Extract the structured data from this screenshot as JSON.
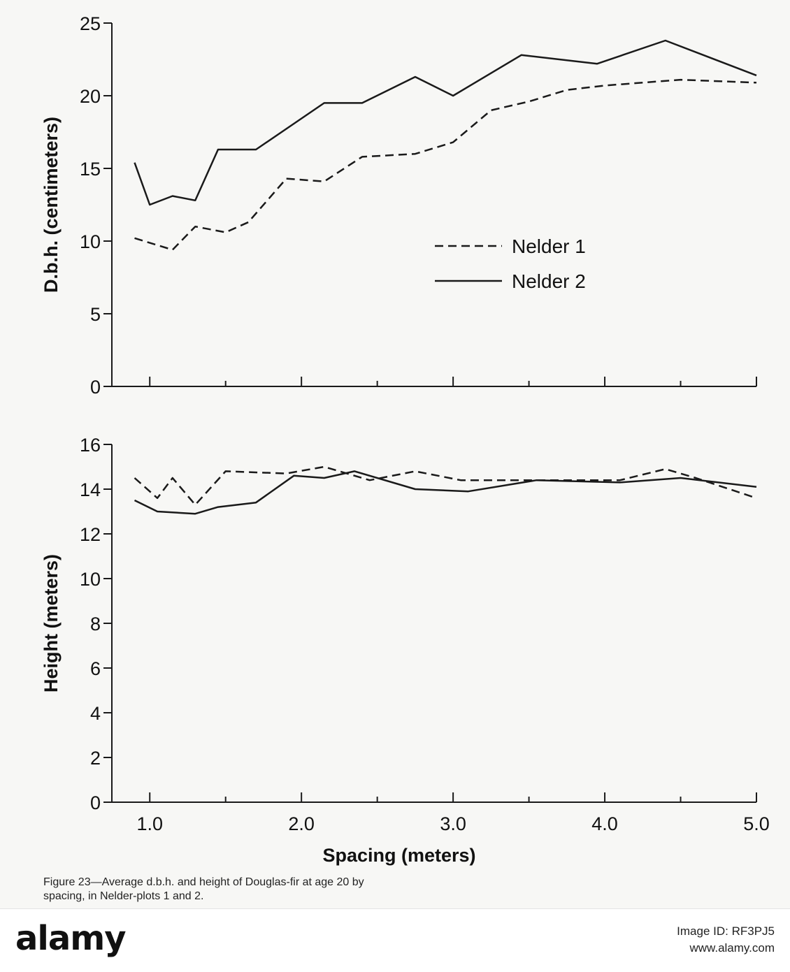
{
  "chart_data": [
    {
      "type": "line",
      "title": "",
      "xlabel": "",
      "ylabel": "D.b.h. (centimeters)",
      "ylim": [
        0,
        25
      ],
      "yticks": [
        "0",
        "5",
        "10",
        "15",
        "20",
        "25"
      ],
      "legend_position": "center-right",
      "series": [
        {
          "name": "Nelder 1",
          "style": "dashed",
          "x": [
            0.9,
            1.15,
            1.3,
            1.5,
            1.65,
            1.9,
            2.15,
            2.4,
            2.75,
            3.0,
            3.25,
            3.5,
            3.75,
            4.0,
            4.5,
            5.0
          ],
          "values": [
            10.2,
            9.4,
            11.0,
            10.6,
            11.3,
            14.3,
            14.1,
            15.8,
            16.0,
            16.8,
            19.0,
            19.6,
            20.4,
            20.7,
            21.1,
            20.9
          ]
        },
        {
          "name": "Nelder 2",
          "style": "solid",
          "x": [
            0.9,
            1.0,
            1.15,
            1.3,
            1.45,
            1.7,
            2.15,
            2.4,
            2.75,
            3.0,
            3.45,
            3.95,
            4.4,
            5.0
          ],
          "values": [
            15.4,
            12.5,
            13.1,
            12.8,
            16.3,
            16.3,
            19.5,
            19.5,
            21.3,
            20.0,
            22.8,
            22.2,
            23.8,
            21.4
          ]
        }
      ]
    },
    {
      "type": "line",
      "title": "",
      "xlabel": "Spacing (meters)",
      "ylabel": "Height (meters)",
      "ylim": [
        0,
        16
      ],
      "xlim": [
        0.75,
        5.0
      ],
      "xticks": [
        "1.0",
        "2.0",
        "3.0",
        "4.0",
        "5.0"
      ],
      "yticks": [
        "0",
        "2",
        "4",
        "6",
        "8",
        "10",
        "12",
        "14",
        "16"
      ],
      "series": [
        {
          "name": "Nelder 1",
          "style": "dashed",
          "x": [
            0.9,
            1.05,
            1.15,
            1.3,
            1.5,
            1.9,
            2.15,
            2.45,
            2.75,
            3.05,
            3.5,
            4.1,
            4.4,
            4.6,
            5.0
          ],
          "values": [
            14.5,
            13.6,
            14.5,
            13.3,
            14.8,
            14.7,
            15.0,
            14.4,
            14.8,
            14.4,
            14.4,
            14.4,
            14.9,
            14.5,
            13.6
          ]
        },
        {
          "name": "Nelder 2",
          "style": "solid",
          "x": [
            0.9,
            1.05,
            1.3,
            1.45,
            1.7,
            1.95,
            2.15,
            2.35,
            2.75,
            3.1,
            3.55,
            4.1,
            4.5,
            5.0
          ],
          "values": [
            13.5,
            13.0,
            12.9,
            13.2,
            13.4,
            14.6,
            14.5,
            14.8,
            14.0,
            13.9,
            14.4,
            14.3,
            14.5,
            14.1
          ]
        }
      ]
    }
  ],
  "caption": {
    "line1": "Figure 23—Average d.b.h. and height of Douglas-fir at age 20 by",
    "line2": "spacing, in Nelder-plots 1 and 2."
  },
  "watermark": {
    "logo": "alamy",
    "image_id_line": "Image ID: RF3PJ5",
    "site": "www.alamy.com"
  },
  "colors": {
    "line": "#1a1a1a",
    "background": "#f7f7f5"
  }
}
